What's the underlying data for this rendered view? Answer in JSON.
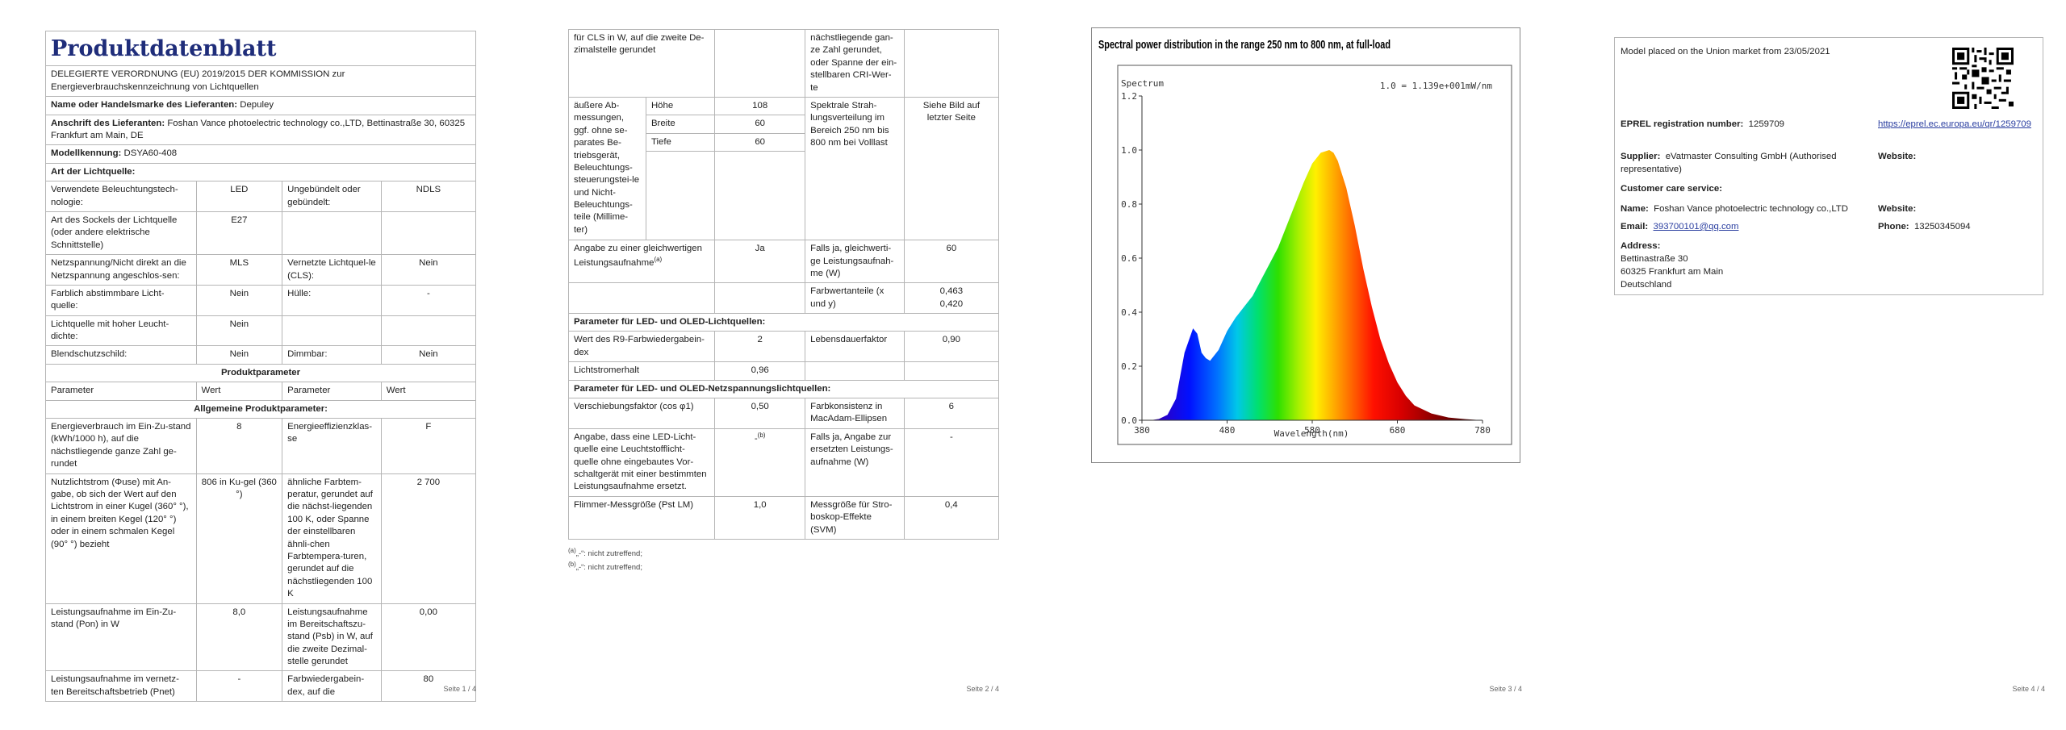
{
  "page1": {
    "title": "Produktdatenblatt",
    "regulation": "DELEGIERTE VERORDNUNG (EU) 2019/2015 DER KOMMISSION zur Energieverbrauchskennzeichnung von Lichtquellen",
    "supplier_name_label": "Name oder Handelsmarke des Lieferanten:",
    "supplier_name": "Depuley",
    "address_label": "Anschrift des Lieferanten:",
    "address": "Foshan Vance photoelectric technology co.,LTD, Bettinastraße 30, 60325 Frankfurt am Main, DE",
    "model_label": "Modellkennung:",
    "model": "DSYA60-408",
    "type_label": "Art der Lichtquelle:",
    "rows": [
      [
        "Verwendete Beleuchtungstech-nologie:",
        "LED",
        "Ungebündelt oder gebündelt:",
        "NDLS"
      ],
      [
        "Art des Sockels der Lichtquelle (oder andere elektrische Schnittstelle)",
        "E27",
        "",
        ""
      ],
      [
        "Netzspannung/Nicht direkt an die Netzspannung angeschlos-sen:",
        "MLS",
        "Vernetzte Lichtquel-le (CLS):",
        "Nein"
      ],
      [
        "Farblich abstimmbare Licht-quelle:",
        "Nein",
        "Hülle:",
        "-"
      ],
      [
        "Lichtquelle mit hoher Leucht-dichte:",
        "Nein",
        "",
        ""
      ],
      [
        "Blendschutzschild:",
        "Nein",
        "Dimmbar:",
        "Nein"
      ]
    ],
    "product_params": "Produktparameter",
    "col_headers": [
      "Parameter",
      "Wert",
      "Parameter",
      "Wert"
    ],
    "general_params": "Allgemeine Produktparameter:",
    "rows2": [
      [
        "Energieverbrauch im Ein-Zu-stand (kWh/1000 h), auf die nächstliegende ganze Zahl ge-rundet",
        "8",
        "Energieeffizienzklas-se",
        "F"
      ],
      [
        "Nutzlichtstrom (Φuse) mit An-gabe, ob sich der Wert auf den Lichtstrom in einer Kugel (360° °), in einem breiten Kegel (120° °) oder in einem schmalen Kegel (90° °) bezieht",
        "806 in Ku-gel (360 °)",
        "ähnliche Farbtem-peratur, gerundet auf die nächst-liegenden 100 K, oder Spanne der einstellbaren ähnli-chen Farbtempera-turen, gerundet auf die nächstliegenden 100 K",
        "2 700"
      ],
      [
        "Leistungsaufnahme im Ein-Zu-stand (Pon) in W",
        "8,0",
        "Leistungsaufnahme im Bereitschaftszu-stand (Psb) in W, auf die zweite Dezimal-stelle gerundet",
        "0,00"
      ],
      [
        "Leistungsaufnahme im vernetz-ten Bereitschaftsbetrieb (Pnet)",
        "-",
        "Farbwiedergabein-dex, auf die",
        "80"
      ]
    ],
    "footer": "Seite 1 / 4"
  },
  "page2": {
    "cont_left": "für CLS in W, auf die zweite De-zimalstelle gerundet",
    "cont_right": "nächstliegende gan-ze Zahl gerundet, oder Spanne der ein-stellbaren CRI-Wer-te",
    "dims_label": "äußere Ab-messungen, ggf. ohne se-parates Be-triebsgerät, Beleuchtungs-steuerungstei-le und Nicht-Beleuchtungs-teile (Millime-ter)",
    "dims": [
      [
        "Höhe",
        "108"
      ],
      [
        "Breite",
        "60"
      ],
      [
        "Tiefe",
        "60"
      ]
    ],
    "spectral_label": "Spektrale Strah-lungsverteilung im Bereich 250 nm bis 800 nm bei Volllast",
    "spectral_value": "Siehe Bild auf letzter Seite",
    "equiv_label": "Angabe zu einer gleichwertigen Leistungsaufnahme",
    "equiv_sup": "(a)",
    "equiv_value": "Ja",
    "equiv_r_label": "Falls ja, gleichwerti-ge Leistungsaufnah-me (W)",
    "equiv_r_value": "60",
    "chroma_label": "Farbwertanteile (x und y)",
    "chroma_x": "0,463",
    "chroma_y": "0,420",
    "led_header": "Parameter für LED- und OLED-Lichtquellen:",
    "r9_label": "Wert des R9-Farbwiedergabein-dex",
    "r9_value": "2",
    "life_label": "Lebensdauerfaktor",
    "life_value": "0,90",
    "maint_label": "Lichtstromerhalt",
    "maint_value": "0,96",
    "mains_header": "Parameter für LED- und OLED-Netzspannungslichtquellen:",
    "cos_label": "Verschiebungsfaktor (cos φ1)",
    "cos_value": "0,50",
    "macadam_label": "Farbkonsistenz in MacAdam-Ellipsen",
    "macadam_value": "6",
    "fluo_label": "Angabe, dass eine LED-Licht-quelle eine Leuchtstofflicht-quelle ohne eingebautes Vor-schaltgerät mit einer bestimmten Leistungsaufnahme ersetzt.",
    "fluo_value": "-",
    "fluo_sup": "(b)",
    "fluo_r_label": "Falls ja, Angabe zur ersetzten Leistungs-aufnahme (W)",
    "fluo_r_value": "-",
    "flicker_label": "Flimmer-Messgröße (Pst LM)",
    "flicker_value": "1,0",
    "strobo_label": "Messgröße für Stro-boskop-Effekte (SVM)",
    "strobo_value": "0,4",
    "note_a": "„-“: nicht zutreffend;",
    "note_a_mark": "(a)",
    "note_b": "„-“: nicht zutreffend;",
    "note_b_mark": "(b)",
    "footer": "Seite 2 / 4"
  },
  "page3": {
    "footer": "Seite 3 / 4"
  },
  "chart_data": {
    "type": "area",
    "title": "Spectral power distribution in the range 250 nm to 800 nm, at full-load",
    "ylabel": "Spectrum",
    "xlabel": "Wavelength(nm)",
    "scale_note": "1.0 = 1.139e+001mW/nm",
    "xlim": [
      380,
      780
    ],
    "ylim": [
      0,
      1.2
    ],
    "x_ticks": [
      "380",
      "480",
      "580",
      "680",
      "780"
    ],
    "y_ticks": [
      "0.0",
      "0.2",
      "0.4",
      "0.6",
      "0.8",
      "1.0",
      "1.2"
    ],
    "x": [
      380,
      390,
      400,
      410,
      420,
      430,
      440,
      445,
      450,
      455,
      460,
      470,
      480,
      490,
      500,
      510,
      520,
      530,
      540,
      550,
      560,
      570,
      580,
      590,
      600,
      605,
      610,
      620,
      630,
      640,
      650,
      660,
      670,
      680,
      690,
      700,
      720,
      740,
      760,
      780
    ],
    "values": [
      0.0,
      0.0,
      0.005,
      0.02,
      0.08,
      0.25,
      0.34,
      0.32,
      0.25,
      0.23,
      0.22,
      0.26,
      0.33,
      0.38,
      0.42,
      0.46,
      0.52,
      0.58,
      0.64,
      0.72,
      0.8,
      0.88,
      0.95,
      0.99,
      1.0,
      0.99,
      0.96,
      0.86,
      0.72,
      0.56,
      0.42,
      0.3,
      0.21,
      0.14,
      0.09,
      0.055,
      0.025,
      0.01,
      0.004,
      0.0
    ]
  },
  "page4": {
    "placed": "Model placed on the Union market from 23/05/2021",
    "eprel_label": "EPREL registration number:",
    "eprel_value": "1259709",
    "eprel_link": "https://eprel.ec.europa.eu/qr/1259709",
    "supplier_label": "Supplier:",
    "supplier_value": "eVatmaster Consulting GmbH (Authorised representative)",
    "website_label": "Website:",
    "care_label": "Customer care service:",
    "name_label": "Name:",
    "name_value": "Foshan Vance photoelectric technology co.,LTD",
    "website2_label": "Website:",
    "email_label": "Email:",
    "email_value": "393700101@qq.com",
    "phone_label": "Phone:",
    "phone_value": "13250345094",
    "addr_label": "Address:",
    "addr_line1": "Bettinastraße 30",
    "addr_line2": "60325 Frankfurt am Main",
    "addr_line3": "Deutschland",
    "footer": "Seite 4 / 4"
  }
}
